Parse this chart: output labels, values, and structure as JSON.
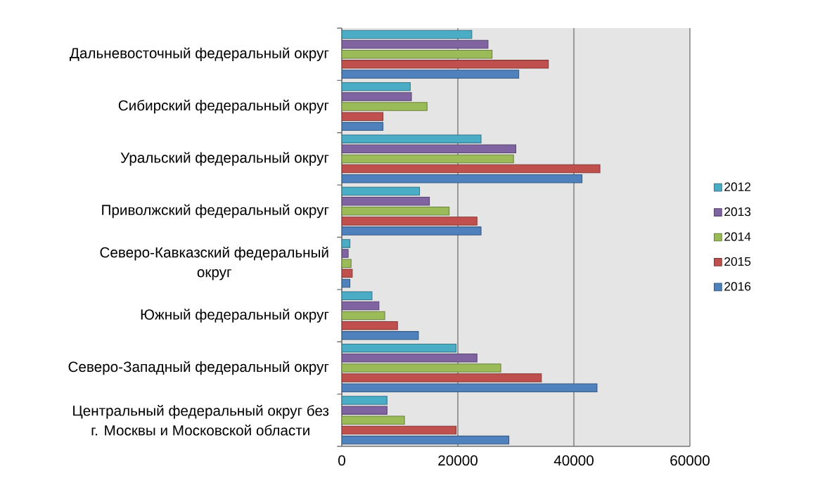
{
  "chart_data": {
    "type": "bar",
    "orientation": "horizontal",
    "categories": [
      "Дальневосточный федеральный округ",
      "Сибирский федеральный округ",
      "Уральский федеральный округ",
      "Приволжский федеральный округ",
      "Северо-Кавказский федеральный округ",
      "Южный федеральный округ",
      "Северо-Западный федеральный округ",
      "Центральный федеральный округ без г. Москвы и Московской области"
    ],
    "series": [
      {
        "name": "2012",
        "color": "#4bacc6",
        "values": [
          22400,
          11800,
          24000,
          13400,
          1400,
          5200,
          19700,
          7800
        ]
      },
      {
        "name": "2013",
        "color": "#8064a2",
        "values": [
          25200,
          12000,
          30000,
          15100,
          1100,
          6400,
          23300,
          7800
        ]
      },
      {
        "name": "2014",
        "color": "#9bbb59",
        "values": [
          25900,
          14700,
          29600,
          18500,
          1600,
          7400,
          27400,
          10800
        ]
      },
      {
        "name": "2015",
        "color": "#c0504d",
        "values": [
          35600,
          7100,
          44500,
          23300,
          1800,
          9600,
          34400,
          19700
        ]
      },
      {
        "name": "2016",
        "color": "#4f81bd",
        "values": [
          30500,
          7100,
          41400,
          24000,
          1400,
          13200,
          44000,
          28800
        ]
      }
    ],
    "xlim": [
      0,
      60000
    ],
    "xticks": [
      0,
      20000,
      40000,
      60000
    ],
    "grid": "x",
    "legend": "right"
  }
}
